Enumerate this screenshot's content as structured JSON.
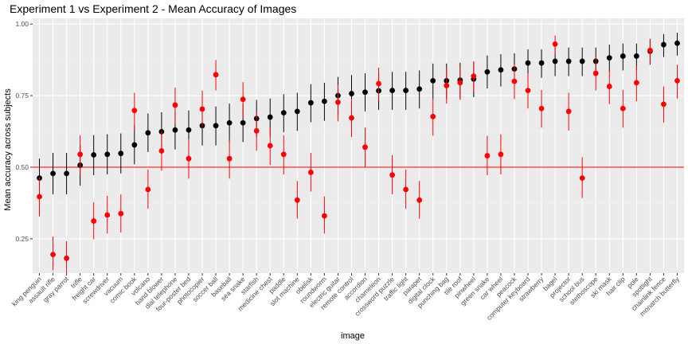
{
  "chart_data": {
    "type": "scatter",
    "title": "Experiment 1 vs Experiment 2 - Mean Accuracy of Images",
    "xlabel": "image",
    "ylabel": "Mean accuracy across subjects",
    "ylim": [
      0.13,
      1.02
    ],
    "y_ticks": [
      "0.25",
      "0.50",
      "0.75",
      "1.00"
    ],
    "y_tick_values": [
      0.25,
      0.5,
      0.75,
      1.0
    ],
    "reference_line": 0.5,
    "grid": true,
    "categories": [
      "king penguin",
      "assault rifle",
      "gray parrot",
      "trifle",
      "freight car",
      "screwdriver",
      "vacuum",
      "comic book",
      "volcano",
      "hand blower",
      "dial telephone",
      "four-poster bed",
      "photocopier",
      "soccer ball",
      "baseball",
      "sea snake",
      "starfish",
      "medicine chest",
      "paddle",
      "slot machine",
      "obelisk",
      "roundworm",
      "electric guitar",
      "remote control",
      "accordion",
      "chameleon",
      "crossword puzzle",
      "traffic light",
      "parapet",
      "digital clock",
      "punching bag",
      "tile roof",
      "pinwheel",
      "green snake",
      "car wheel",
      "peacock",
      "computer keyboard",
      "strawberry",
      "bagel",
      "projector",
      "school bus",
      "stethoscope",
      "ski mask",
      "hair clip",
      "pole",
      "spotlight",
      "chainlink fence",
      "monarch butterfly"
    ],
    "series": [
      {
        "color": "#000000",
        "values": [
          0.462,
          0.478,
          0.478,
          0.507,
          0.543,
          0.545,
          0.548,
          0.578,
          0.62,
          0.624,
          0.63,
          0.63,
          0.645,
          0.645,
          0.655,
          0.655,
          0.67,
          0.675,
          0.69,
          0.695,
          0.725,
          0.73,
          0.75,
          0.757,
          0.762,
          0.767,
          0.768,
          0.768,
          0.773,
          0.802,
          0.802,
          0.804,
          0.808,
          0.833,
          0.84,
          0.843,
          0.864,
          0.864,
          0.87,
          0.87,
          0.87,
          0.87,
          0.882,
          0.888,
          0.888,
          0.905,
          0.928,
          0.933
        ],
        "ci_low": [
          0.395,
          0.405,
          0.405,
          0.435,
          0.472,
          0.475,
          0.478,
          0.51,
          0.553,
          0.557,
          0.562,
          0.562,
          0.576,
          0.576,
          0.588,
          0.588,
          0.605,
          0.607,
          0.622,
          0.627,
          0.657,
          0.662,
          0.682,
          0.69,
          0.695,
          0.7,
          0.7,
          0.7,
          0.705,
          0.738,
          0.738,
          0.74,
          0.745,
          0.775,
          0.782,
          0.785,
          0.812,
          0.812,
          0.818,
          0.818,
          0.818,
          0.818,
          0.832,
          0.838,
          0.838,
          0.858,
          0.885,
          0.89
        ],
        "ci_high": [
          0.53,
          0.55,
          0.55,
          0.578,
          0.612,
          0.615,
          0.618,
          0.648,
          0.688,
          0.692,
          0.698,
          0.698,
          0.712,
          0.712,
          0.722,
          0.722,
          0.735,
          0.74,
          0.755,
          0.76,
          0.79,
          0.795,
          0.815,
          0.822,
          0.828,
          0.832,
          0.833,
          0.833,
          0.838,
          0.862,
          0.862,
          0.865,
          0.868,
          0.89,
          0.895,
          0.898,
          0.912,
          0.912,
          0.918,
          0.918,
          0.918,
          0.918,
          0.928,
          0.932,
          0.932,
          0.948,
          0.965,
          0.97
        ]
      },
      {
        "color": "#ff0000",
        "values": [
          0.397,
          0.195,
          0.182,
          0.545,
          0.312,
          0.333,
          0.338,
          0.698,
          0.422,
          0.557,
          0.717,
          0.53,
          0.703,
          0.823,
          0.53,
          0.737,
          0.627,
          0.575,
          0.545,
          0.385,
          0.482,
          0.33,
          0.727,
          0.672,
          0.57,
          0.792,
          0.473,
          0.422,
          0.385,
          0.677,
          0.785,
          0.795,
          0.818,
          0.54,
          0.545,
          0.8,
          0.768,
          0.705,
          0.93,
          0.695,
          0.462,
          0.828,
          0.782,
          0.705,
          0.795,
          0.908,
          0.72,
          0.802
        ],
        "ci_low": [
          0.328,
          0.14,
          0.128,
          0.475,
          0.248,
          0.268,
          0.272,
          0.63,
          0.355,
          0.488,
          0.652,
          0.46,
          0.636,
          0.768,
          0.46,
          0.672,
          0.558,
          0.508,
          0.475,
          0.32,
          0.415,
          0.268,
          0.66,
          0.605,
          0.5,
          0.732,
          0.405,
          0.355,
          0.32,
          0.61,
          0.722,
          0.735,
          0.762,
          0.472,
          0.475,
          0.738,
          0.705,
          0.638,
          0.895,
          0.628,
          0.392,
          0.768,
          0.72,
          0.638,
          0.73,
          0.86,
          0.655,
          0.74
        ],
        "ci_high": [
          0.465,
          0.258,
          0.242,
          0.612,
          0.378,
          0.4,
          0.405,
          0.76,
          0.492,
          0.625,
          0.778,
          0.598,
          0.767,
          0.875,
          0.598,
          0.797,
          0.693,
          0.643,
          0.612,
          0.452,
          0.55,
          0.398,
          0.788,
          0.738,
          0.638,
          0.848,
          0.542,
          0.492,
          0.452,
          0.74,
          0.845,
          0.852,
          0.87,
          0.61,
          0.615,
          0.858,
          0.828,
          0.77,
          0.96,
          0.76,
          0.535,
          0.883,
          0.84,
          0.77,
          0.855,
          0.948,
          0.782,
          0.858
        ]
      }
    ]
  }
}
